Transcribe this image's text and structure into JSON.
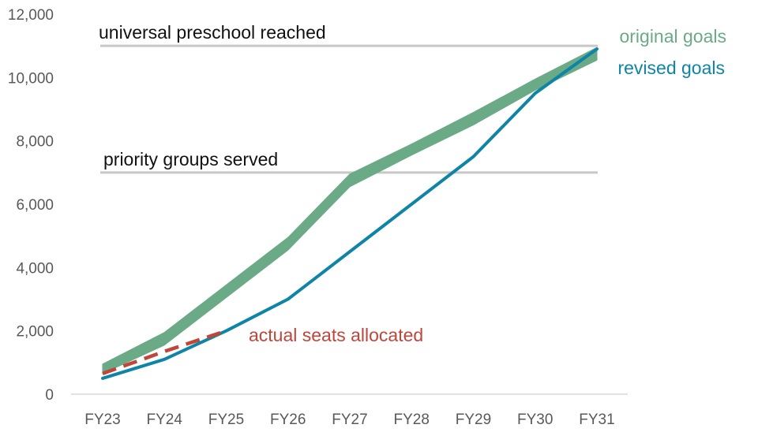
{
  "chart_data": {
    "type": "line",
    "title": "",
    "xlabel": "",
    "ylabel": "",
    "categories": [
      "FY23",
      "FY24",
      "FY25",
      "FY26",
      "FY27",
      "FY28",
      "FY29",
      "FY30",
      "FY31"
    ],
    "ylim": [
      0,
      12000
    ],
    "yticks": [
      0,
      2000,
      4000,
      6000,
      8000,
      10000,
      12000
    ],
    "ytick_labels": [
      "0",
      "2,000",
      "4,000",
      "6,000",
      "8,000",
      "10,000",
      "12,000"
    ],
    "grid": false,
    "reference_lines": [
      {
        "label": "universal preschool reached",
        "value": 11000,
        "color": "#c8c8c8"
      },
      {
        "label": "priority groups served",
        "value": 7000,
        "color": "#c8c8c8"
      }
    ],
    "series": [
      {
        "name": "original goals",
        "style": "band",
        "color": "#6aaa86",
        "upper": [
          950,
          1950,
          3450,
          4950,
          6950,
          7900,
          8900,
          9950,
          10950
        ],
        "lower": [
          650,
          1550,
          3050,
          4550,
          6550,
          7550,
          8500,
          9600,
          10550
        ]
      },
      {
        "name": "revised goals",
        "style": "solid",
        "color": "#0e84a6",
        "values": [
          500,
          1100,
          2000,
          3000,
          4500,
          6000,
          7500,
          9500,
          10900
        ]
      },
      {
        "name": "actual seats allocated",
        "style": "dashed",
        "color": "#c0463a",
        "values": [
          650,
          1350,
          2000,
          null,
          null,
          null,
          null,
          null,
          null
        ]
      }
    ]
  }
}
